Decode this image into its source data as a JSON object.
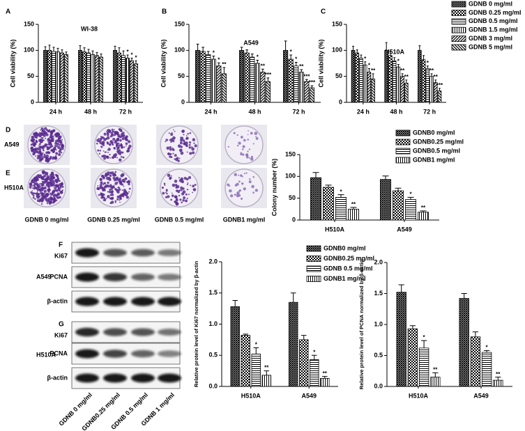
{
  "chart_data": [
    {
      "type": "bar",
      "panel": "A",
      "title": "WI-38",
      "ylabel": "Cell viability (%)",
      "categories": [
        "24 h",
        "48 h",
        "72 h"
      ],
      "ylim": [
        0,
        150
      ],
      "yticks": [
        0,
        50,
        100,
        150
      ],
      "series": [
        {
          "color": "#000000",
          "values": [
            100,
            100,
            100
          ],
          "errors": [
            7,
            9,
            8
          ],
          "labels": [
            null,
            null,
            null
          ]
        },
        {
          "color": "#000000",
          "values": [
            100,
            97,
            95
          ],
          "errors": [
            10,
            8,
            10
          ],
          "labels": [
            null,
            null,
            null
          ]
        },
        {
          "color": "#000000",
          "values": [
            98,
            95,
            90
          ],
          "errors": [
            8,
            7,
            9
          ],
          "labels": [
            null,
            null,
            null
          ]
        },
        {
          "color": "#000000",
          "values": [
            97,
            92,
            85
          ],
          "errors": [
            7,
            7,
            6
          ],
          "labels": [
            null,
            null,
            "*"
          ]
        },
        {
          "color": "#000000",
          "values": [
            95,
            90,
            80
          ],
          "errors": [
            6,
            6,
            5
          ],
          "labels": [
            null,
            null,
            "*"
          ]
        },
        {
          "color": "#000000",
          "values": [
            92,
            87,
            74
          ],
          "errors": [
            5,
            6,
            6
          ],
          "labels": [
            null,
            null,
            "*"
          ]
        }
      ]
    },
    {
      "type": "bar",
      "panel": "B",
      "title": "A549",
      "ylabel": "Cell viability (%)",
      "categories": [
        "24 h",
        "48 h",
        "72 h"
      ],
      "ylim": [
        0,
        150
      ],
      "yticks": [
        0,
        50,
        100,
        150
      ],
      "series": [
        {
          "color": "#000000",
          "values": [
            100,
            100,
            100
          ],
          "errors": [
            12,
            6,
            18
          ],
          "labels": [
            null,
            null,
            null
          ]
        },
        {
          "color": "#000000",
          "values": [
            98,
            95,
            83
          ],
          "errors": [
            8,
            6,
            8
          ],
          "labels": [
            null,
            null,
            "*"
          ]
        },
        {
          "color": "#000000",
          "values": [
            92,
            87,
            70
          ],
          "errors": [
            6,
            6,
            7
          ],
          "labels": [
            null,
            null,
            "*"
          ]
        },
        {
          "color": "#000000",
          "values": [
            83,
            75,
            58
          ],
          "errors": [
            6,
            6,
            5
          ],
          "labels": [
            "*",
            "*",
            "**"
          ]
        },
        {
          "color": "#000000",
          "values": [
            70,
            58,
            40
          ],
          "errors": [
            6,
            6,
            4
          ],
          "labels": [
            "*",
            "**",
            "***"
          ]
        },
        {
          "color": "#000000",
          "values": [
            55,
            40,
            28
          ],
          "errors": [
            12,
            7,
            4
          ],
          "labels": [
            "**",
            "***",
            "***"
          ]
        }
      ]
    },
    {
      "type": "bar",
      "panel": "C",
      "title": "H510A",
      "ylabel": "Cell viability (%)",
      "categories": [
        "24 h",
        "48 h",
        "72 h"
      ],
      "ylim": [
        0,
        150
      ],
      "yticks": [
        0,
        50,
        100,
        150
      ],
      "series": [
        {
          "name": "GDNB 0 mg/ml",
          "color": "#000000",
          "values": [
            100,
            100,
            100
          ],
          "errors": [
            8,
            15,
            9
          ],
          "labels": [
            null,
            null,
            null
          ]
        },
        {
          "name": "GDNB 0.25 mg/ml",
          "color": "#000000",
          "values": [
            95,
            90,
            82
          ],
          "errors": [
            6,
            8,
            8
          ],
          "labels": [
            null,
            null,
            null
          ]
        },
        {
          "name": "GDNB 0.5 mg/ml",
          "color": "#000000",
          "values": [
            85,
            80,
            65
          ],
          "errors": [
            6,
            6,
            5
          ],
          "labels": [
            null,
            null,
            "*"
          ]
        },
        {
          "name": "GDNB 1.5 mg/ml",
          "color": "#000000",
          "values": [
            72,
            68,
            50
          ],
          "errors": [
            6,
            5,
            5
          ],
          "labels": [
            "*",
            "*",
            "**"
          ]
        },
        {
          "name": "GDNB 3 mg/ml",
          "color": "#000000",
          "values": [
            58,
            50,
            38
          ],
          "errors": [
            7,
            5,
            5
          ],
          "labels": [
            "*",
            "**",
            "**"
          ]
        },
        {
          "name": "GDNB 5 mg/ml",
          "color": "#000000",
          "values": [
            45,
            37,
            22
          ],
          "errors": [
            10,
            6,
            5
          ],
          "labels": [
            "**",
            "**",
            "***"
          ]
        }
      ]
    },
    {
      "type": "bar",
      "ylabel": "Colony number (%)",
      "categories": [
        "H510A",
        "A549"
      ],
      "ylim": [
        0,
        150
      ],
      "yticks": [
        0,
        50,
        100,
        150
      ],
      "series": [
        {
          "name": "GDNB0 mg/ml",
          "color": "#000000",
          "values": [
            97,
            93
          ],
          "errors": [
            12,
            8
          ],
          "labels": [
            null,
            null
          ]
        },
        {
          "name": "GDNB0.25 mg/ml",
          "color": "#000000",
          "values": [
            75,
            67
          ],
          "errors": [
            5,
            6
          ],
          "labels": [
            null,
            null
          ]
        },
        {
          "name": "GDNB0.5 mg/ml",
          "color": "#000000",
          "values": [
            52,
            47
          ],
          "errors": [
            6,
            5
          ],
          "labels": [
            "*",
            "*"
          ]
        },
        {
          "name": "GDNB1 mg/ml",
          "color": "#000000",
          "values": [
            25,
            18
          ],
          "errors": [
            4,
            3
          ],
          "labels": [
            "**",
            "**"
          ]
        }
      ]
    },
    {
      "type": "bar",
      "ylabel": "Relative protein level of Ki67 normalized by β-actin",
      "categories": [
        "H510A",
        "A549"
      ],
      "ylim": [
        0,
        2
      ],
      "yticks": [
        {
          "value": 0,
          "label": "0.0"
        },
        {
          "value": 0.5,
          "label": "0.5"
        },
        {
          "value": 1,
          "label": "1.0"
        },
        {
          "value": 1.5,
          "label": "1.5"
        },
        {
          "value": 2,
          "label": "2.0"
        }
      ],
      "series": [
        {
          "name": "GDNB0 mg/ml",
          "color": "#000000",
          "values": [
            1.28,
            1.35
          ],
          "errors": [
            0.1,
            0.15
          ],
          "labels": [
            null,
            null
          ]
        },
        {
          "name": "GDNB0.25 mg/ml",
          "color": "#000000",
          "values": [
            0.82,
            0.75
          ],
          "errors": [
            0.02,
            0.07
          ],
          "labels": [
            null,
            null
          ]
        },
        {
          "name": "GDNB 0.5 mg/ml",
          "color": "#000000",
          "values": [
            0.52,
            0.43
          ],
          "errors": [
            0.1,
            0.07
          ],
          "labels": [
            "*",
            "*"
          ]
        },
        {
          "name": "GDNB1 mg/ml",
          "color": "#000000",
          "values": [
            0.18,
            0.13
          ],
          "errors": [
            0.07,
            0.03
          ],
          "labels": [
            "**",
            "**"
          ]
        }
      ]
    },
    {
      "type": "bar",
      "ylabel": "Relative protein level of PCNA normalized by β-actin",
      "categories": [
        "H510A",
        "A549"
      ],
      "ylim": [
        0,
        2
      ],
      "yticks": [
        {
          "value": 0,
          "label": "0.0"
        },
        {
          "value": 0.5,
          "label": "0.5"
        },
        {
          "value": 1,
          "label": "1.0"
        },
        {
          "value": 1.5,
          "label": "1.5"
        },
        {
          "value": 2,
          "label": "2.0"
        }
      ],
      "series": [
        {
          "color": "#000000",
          "values": [
            1.52,
            1.42
          ],
          "errors": [
            0.12,
            0.08
          ],
          "labels": [
            null,
            null
          ]
        },
        {
          "color": "#000000",
          "values": [
            0.93,
            0.8
          ],
          "errors": [
            0.05,
            0.08
          ],
          "labels": [
            null,
            null
          ]
        },
        {
          "color": "#000000",
          "values": [
            0.62,
            0.55
          ],
          "errors": [
            0.12,
            0.03
          ],
          "labels": [
            "*",
            "*"
          ]
        },
        {
          "color": "#000000",
          "values": [
            0.15,
            0.1
          ],
          "errors": [
            0.07,
            0.05
          ],
          "labels": [
            "**",
            "**"
          ]
        }
      ]
    }
  ],
  "colony_images": {
    "panels": [
      "D",
      "E"
    ],
    "rows": [
      "A549",
      "H510A"
    ],
    "columns": [
      "GDNB 0 mg/ml",
      "GDNB 0.25 mg/ml",
      "GDNB 0.5 mg/ml",
      "GDNB1 mg/ml"
    ]
  },
  "western_blot": {
    "panels": [
      "F",
      "G"
    ],
    "groups": [
      "A549",
      "H510A"
    ],
    "proteins": [
      "Ki67",
      "PCNA",
      "β-actin"
    ],
    "columns": [
      "GDNB 0 mg/ml",
      "GDNB0.25 mg/ml",
      "GDNB 0.5 mg/ml",
      "GDNB 1 mg/ml"
    ]
  }
}
